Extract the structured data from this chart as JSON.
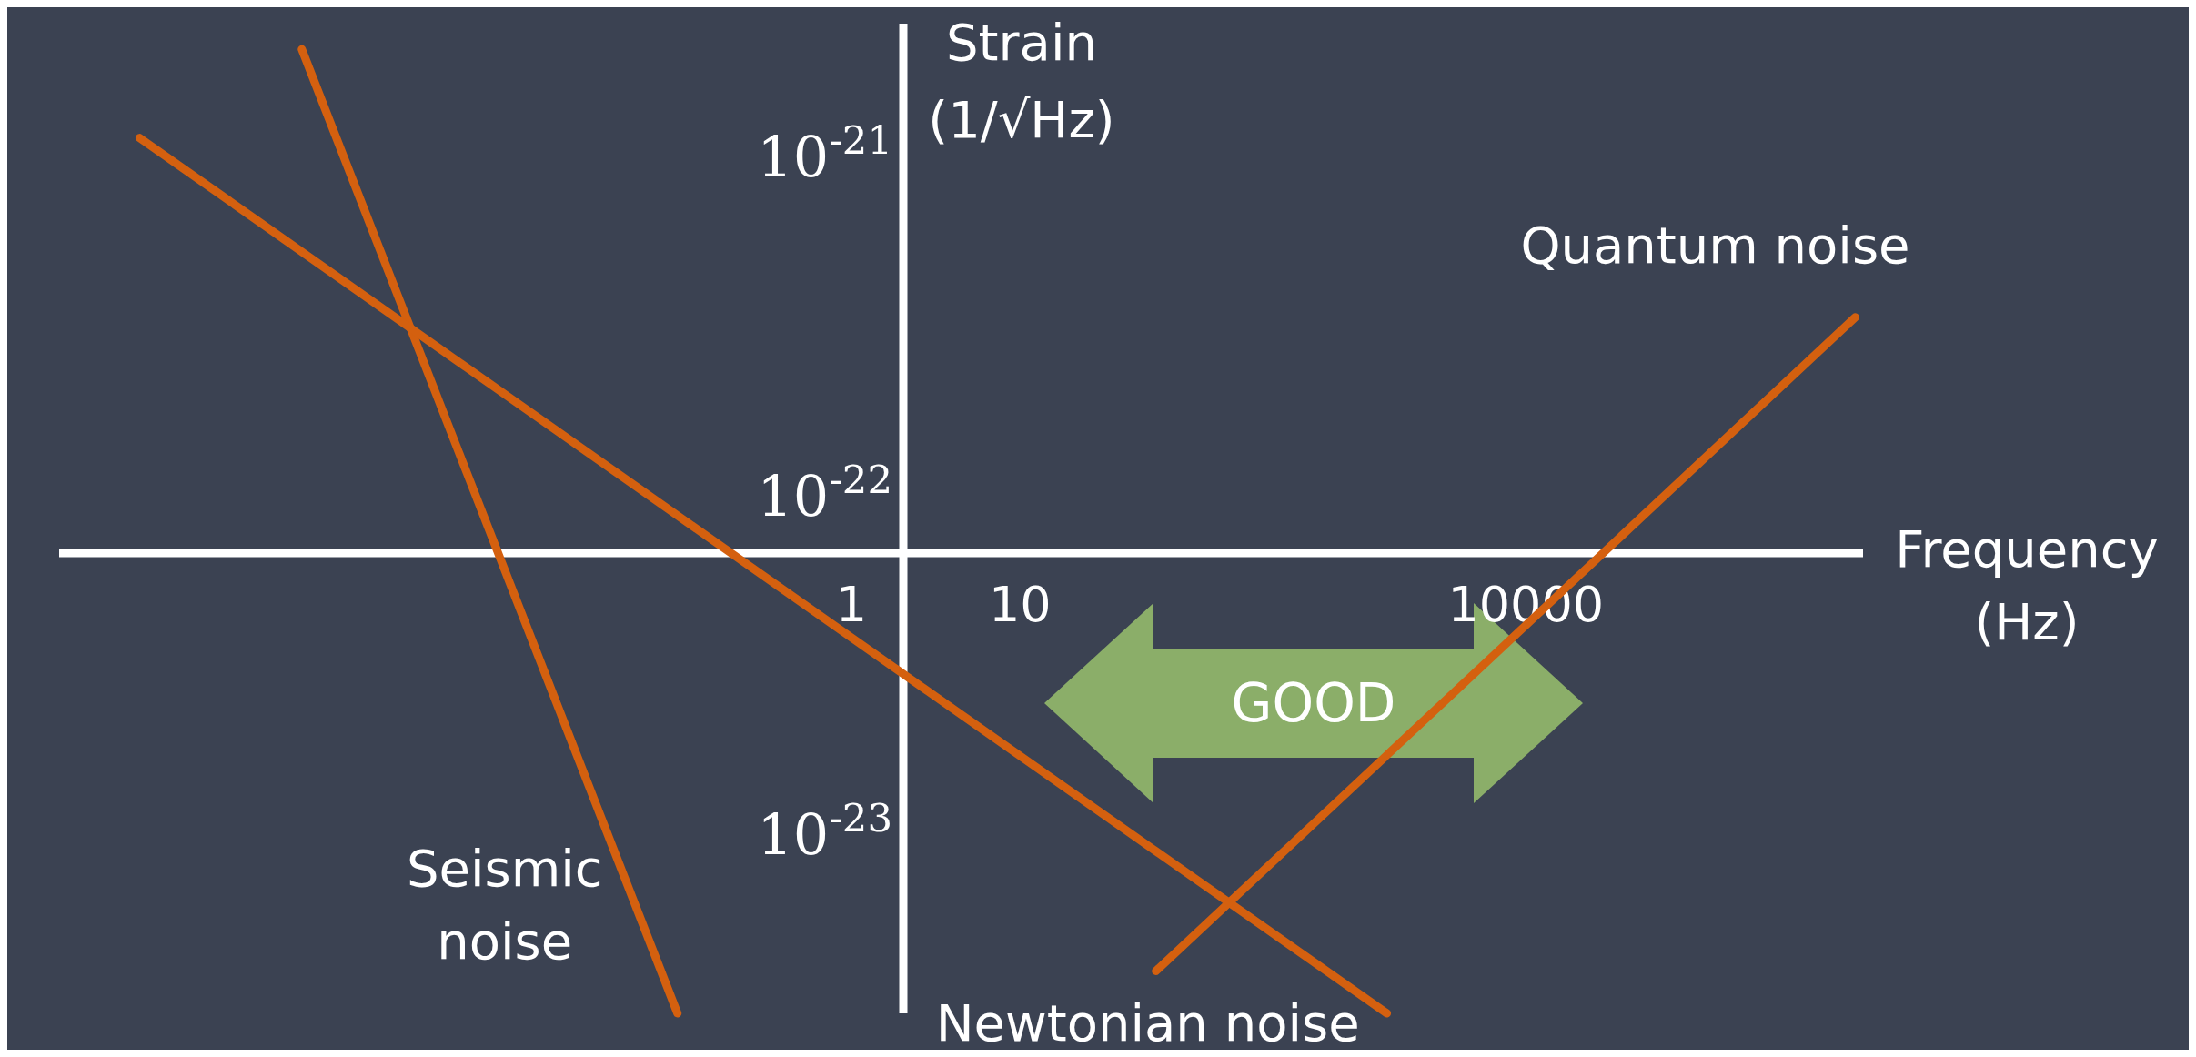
{
  "chart_data": {
    "type": "line",
    "log": "xy",
    "xlabel": "Frequency (Hz)",
    "ylabel": "Strain (1/√Hz)",
    "xlim": [
      2e-05,
      1000000
    ],
    "ylim": [
      3e-24,
      2.5e-21
    ],
    "xticks": [
      1,
      10,
      10000
    ],
    "yticks": [
      {
        "value": 1e-21,
        "label": "10$^{-21}$"
      },
      {
        "value": 1e-22,
        "label": "10$^{-22}$"
      },
      {
        "value": 1e-23,
        "label": "10$^{-23}$"
      }
    ],
    "marker": "none",
    "line_style": "solid",
    "series": [
      {
        "name": "Seismic noise",
        "color": "#d4600f",
        "x": [
          0.00055,
          0.093
        ],
        "values": [
          2.1e-21,
          3e-24
        ]
      },
      {
        "name": "Newtonian noise",
        "color": "#d4600f",
        "x": [
          6e-05,
          1500
        ],
        "values": [
          1.15e-21,
          3e-24
        ]
      },
      {
        "name": "Quantum noise",
        "color": "#d4600f",
        "x": [
          64,
          900000
        ],
        "values": [
          4e-24,
          3.4e-22
        ]
      }
    ],
    "annotations": [
      "GOOD"
    ]
  }
}
